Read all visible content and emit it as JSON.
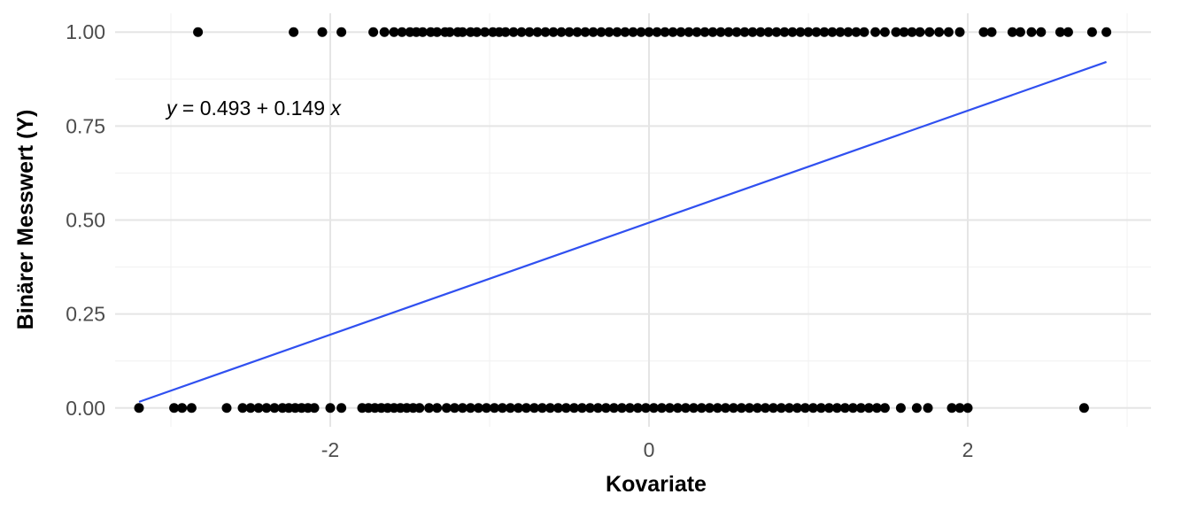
{
  "chart_data": {
    "type": "scatter",
    "xlabel": "Kovariate",
    "ylabel": "Binärer Messwert (Y)",
    "xlim": [
      -3.35,
      3.15
    ],
    "ylim": [
      -0.05,
      1.05
    ],
    "x_ticks": [
      -2,
      0,
      2
    ],
    "x_tick_labels": [
      "-2",
      "0",
      "2"
    ],
    "y_ticks": [
      0,
      0.25,
      0.5,
      0.75,
      1
    ],
    "y_tick_labels": [
      "0.00",
      "0.25",
      "0.50",
      "0.75",
      "1.00"
    ],
    "grid": true,
    "point_color": "#000000",
    "line_color": "#3050f0",
    "annotation": {
      "y_var": "y",
      "equals": " = 0.493 + 0.149 ",
      "x_var": "x",
      "x": -3.2,
      "y": 0.79
    },
    "regression_line": {
      "intercept": 0.493,
      "slope": 0.149,
      "x_range": [
        -3.2,
        2.87
      ]
    },
    "series": [
      {
        "values": [
          {
            "x": -2.83,
            "y": 1
          },
          {
            "x": -2.23,
            "y": 1
          },
          {
            "x": -2.05,
            "y": 1
          },
          {
            "x": -1.93,
            "y": 1
          },
          {
            "x": -1.73,
            "y": 1
          },
          {
            "x": -1.66,
            "y": 1
          },
          {
            "x": -1.6,
            "y": 1
          },
          {
            "x": -1.55,
            "y": 1
          },
          {
            "x": -1.5,
            "y": 1
          },
          {
            "x": -1.46,
            "y": 1
          },
          {
            "x": -1.42,
            "y": 1
          },
          {
            "x": -1.37,
            "y": 1
          },
          {
            "x": -1.33,
            "y": 1
          },
          {
            "x": -1.28,
            "y": 1
          },
          {
            "x": -1.25,
            "y": 1
          },
          {
            "x": -1.2,
            "y": 1
          },
          {
            "x": -1.17,
            "y": 1
          },
          {
            "x": -1.12,
            "y": 1
          },
          {
            "x": -1.08,
            "y": 1
          },
          {
            "x": -1.03,
            "y": 1
          },
          {
            "x": -0.98,
            "y": 1
          },
          {
            "x": -0.94,
            "y": 1
          },
          {
            "x": -0.9,
            "y": 1
          },
          {
            "x": -0.85,
            "y": 1
          },
          {
            "x": -0.8,
            "y": 1
          },
          {
            "x": -0.75,
            "y": 1
          },
          {
            "x": -0.7,
            "y": 1
          },
          {
            "x": -0.65,
            "y": 1
          },
          {
            "x": -0.6,
            "y": 1
          },
          {
            "x": -0.55,
            "y": 1
          },
          {
            "x": -0.5,
            "y": 1
          },
          {
            "x": -0.45,
            "y": 1
          },
          {
            "x": -0.4,
            "y": 1
          },
          {
            "x": -0.35,
            "y": 1
          },
          {
            "x": -0.3,
            "y": 1
          },
          {
            "x": -0.25,
            "y": 1
          },
          {
            "x": -0.2,
            "y": 1
          },
          {
            "x": -0.15,
            "y": 1
          },
          {
            "x": -0.1,
            "y": 1
          },
          {
            "x": -0.05,
            "y": 1
          },
          {
            "x": 0.0,
            "y": 1
          },
          {
            "x": 0.05,
            "y": 1
          },
          {
            "x": 0.1,
            "y": 1
          },
          {
            "x": 0.15,
            "y": 1
          },
          {
            "x": 0.2,
            "y": 1
          },
          {
            "x": 0.25,
            "y": 1
          },
          {
            "x": 0.3,
            "y": 1
          },
          {
            "x": 0.35,
            "y": 1
          },
          {
            "x": 0.4,
            "y": 1
          },
          {
            "x": 0.45,
            "y": 1
          },
          {
            "x": 0.5,
            "y": 1
          },
          {
            "x": 0.55,
            "y": 1
          },
          {
            "x": 0.6,
            "y": 1
          },
          {
            "x": 0.65,
            "y": 1
          },
          {
            "x": 0.7,
            "y": 1
          },
          {
            "x": 0.75,
            "y": 1
          },
          {
            "x": 0.8,
            "y": 1
          },
          {
            "x": 0.85,
            "y": 1
          },
          {
            "x": 0.9,
            "y": 1
          },
          {
            "x": 0.95,
            "y": 1
          },
          {
            "x": 1.0,
            "y": 1
          },
          {
            "x": 1.05,
            "y": 1
          },
          {
            "x": 1.1,
            "y": 1
          },
          {
            "x": 1.15,
            "y": 1
          },
          {
            "x": 1.2,
            "y": 1
          },
          {
            "x": 1.25,
            "y": 1
          },
          {
            "x": 1.3,
            "y": 1
          },
          {
            "x": 1.35,
            "y": 1
          },
          {
            "x": 1.42,
            "y": 1
          },
          {
            "x": 1.48,
            "y": 1
          },
          {
            "x": 1.55,
            "y": 1
          },
          {
            "x": 1.6,
            "y": 1
          },
          {
            "x": 1.65,
            "y": 1
          },
          {
            "x": 1.7,
            "y": 1
          },
          {
            "x": 1.76,
            "y": 1
          },
          {
            "x": 1.82,
            "y": 1
          },
          {
            "x": 1.88,
            "y": 1
          },
          {
            "x": 1.95,
            "y": 1
          },
          {
            "x": 2.1,
            "y": 1
          },
          {
            "x": 2.15,
            "y": 1
          },
          {
            "x": 2.28,
            "y": 1
          },
          {
            "x": 2.33,
            "y": 1
          },
          {
            "x": 2.4,
            "y": 1
          },
          {
            "x": 2.46,
            "y": 1
          },
          {
            "x": 2.58,
            "y": 1
          },
          {
            "x": 2.63,
            "y": 1
          },
          {
            "x": 2.78,
            "y": 1
          },
          {
            "x": 2.87,
            "y": 1
          },
          {
            "x": -3.2,
            "y": 0
          },
          {
            "x": -2.98,
            "y": 0
          },
          {
            "x": -2.93,
            "y": 0
          },
          {
            "x": -2.87,
            "y": 0
          },
          {
            "x": -2.65,
            "y": 0
          },
          {
            "x": -2.55,
            "y": 0
          },
          {
            "x": -2.5,
            "y": 0
          },
          {
            "x": -2.45,
            "y": 0
          },
          {
            "x": -2.4,
            "y": 0
          },
          {
            "x": -2.35,
            "y": 0
          },
          {
            "x": -2.3,
            "y": 0
          },
          {
            "x": -2.26,
            "y": 0
          },
          {
            "x": -2.22,
            "y": 0
          },
          {
            "x": -2.18,
            "y": 0
          },
          {
            "x": -2.14,
            "y": 0
          },
          {
            "x": -2.1,
            "y": 0
          },
          {
            "x": -2.0,
            "y": 0
          },
          {
            "x": -1.93,
            "y": 0
          },
          {
            "x": -1.8,
            "y": 0
          },
          {
            "x": -1.76,
            "y": 0
          },
          {
            "x": -1.72,
            "y": 0
          },
          {
            "x": -1.68,
            "y": 0
          },
          {
            "x": -1.64,
            "y": 0
          },
          {
            "x": -1.6,
            "y": 0
          },
          {
            "x": -1.56,
            "y": 0
          },
          {
            "x": -1.52,
            "y": 0
          },
          {
            "x": -1.48,
            "y": 0
          },
          {
            "x": -1.44,
            "y": 0
          },
          {
            "x": -1.38,
            "y": 0
          },
          {
            "x": -1.33,
            "y": 0
          },
          {
            "x": -1.27,
            "y": 0
          },
          {
            "x": -1.22,
            "y": 0
          },
          {
            "x": -1.17,
            "y": 0
          },
          {
            "x": -1.12,
            "y": 0
          },
          {
            "x": -1.07,
            "y": 0
          },
          {
            "x": -1.02,
            "y": 0
          },
          {
            "x": -0.97,
            "y": 0
          },
          {
            "x": -0.92,
            "y": 0
          },
          {
            "x": -0.87,
            "y": 0
          },
          {
            "x": -0.82,
            "y": 0
          },
          {
            "x": -0.77,
            "y": 0
          },
          {
            "x": -0.72,
            "y": 0
          },
          {
            "x": -0.67,
            "y": 0
          },
          {
            "x": -0.62,
            "y": 0
          },
          {
            "x": -0.57,
            "y": 0
          },
          {
            "x": -0.52,
            "y": 0
          },
          {
            "x": -0.47,
            "y": 0
          },
          {
            "x": -0.42,
            "y": 0
          },
          {
            "x": -0.37,
            "y": 0
          },
          {
            "x": -0.32,
            "y": 0
          },
          {
            "x": -0.27,
            "y": 0
          },
          {
            "x": -0.22,
            "y": 0
          },
          {
            "x": -0.17,
            "y": 0
          },
          {
            "x": -0.12,
            "y": 0
          },
          {
            "x": -0.07,
            "y": 0
          },
          {
            "x": -0.02,
            "y": 0
          },
          {
            "x": 0.03,
            "y": 0
          },
          {
            "x": 0.08,
            "y": 0
          },
          {
            "x": 0.13,
            "y": 0
          },
          {
            "x": 0.18,
            "y": 0
          },
          {
            "x": 0.23,
            "y": 0
          },
          {
            "x": 0.28,
            "y": 0
          },
          {
            "x": 0.33,
            "y": 0
          },
          {
            "x": 0.38,
            "y": 0
          },
          {
            "x": 0.43,
            "y": 0
          },
          {
            "x": 0.48,
            "y": 0
          },
          {
            "x": 0.53,
            "y": 0
          },
          {
            "x": 0.58,
            "y": 0
          },
          {
            "x": 0.63,
            "y": 0
          },
          {
            "x": 0.68,
            "y": 0
          },
          {
            "x": 0.73,
            "y": 0
          },
          {
            "x": 0.78,
            "y": 0
          },
          {
            "x": 0.83,
            "y": 0
          },
          {
            "x": 0.88,
            "y": 0
          },
          {
            "x": 0.93,
            "y": 0
          },
          {
            "x": 0.98,
            "y": 0
          },
          {
            "x": 1.03,
            "y": 0
          },
          {
            "x": 1.08,
            "y": 0
          },
          {
            "x": 1.13,
            "y": 0
          },
          {
            "x": 1.18,
            "y": 0
          },
          {
            "x": 1.23,
            "y": 0
          },
          {
            "x": 1.28,
            "y": 0
          },
          {
            "x": 1.33,
            "y": 0
          },
          {
            "x": 1.38,
            "y": 0
          },
          {
            "x": 1.43,
            "y": 0
          },
          {
            "x": 1.48,
            "y": 0
          },
          {
            "x": 1.58,
            "y": 0
          },
          {
            "x": 1.68,
            "y": 0
          },
          {
            "x": 1.75,
            "y": 0
          },
          {
            "x": 1.9,
            "y": 0
          },
          {
            "x": 1.95,
            "y": 0
          },
          {
            "x": 2.0,
            "y": 0
          },
          {
            "x": 2.73,
            "y": 0
          }
        ]
      }
    ]
  }
}
